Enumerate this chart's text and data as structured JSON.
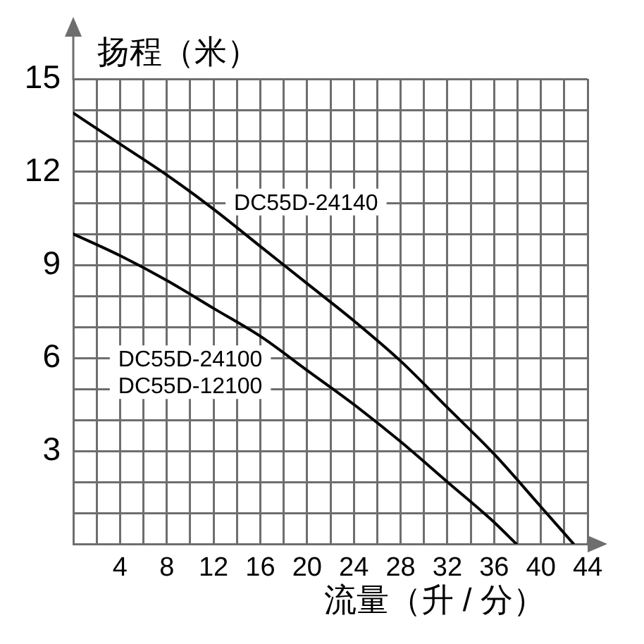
{
  "chart_data": {
    "type": "line",
    "xlabel": "流量（升 / 分）",
    "ylabel": "扬程（米）",
    "xlim": [
      0,
      44
    ],
    "ylim": [
      0,
      15
    ],
    "xticks": [
      {
        "value": 2,
        "label": null
      },
      4,
      {
        "value": 6,
        "label": null
      },
      8,
      {
        "value": 10,
        "label": null
      },
      12,
      {
        "value": 14,
        "label": null
      },
      16,
      {
        "value": 18,
        "label": null
      },
      20,
      {
        "value": 22,
        "label": null
      },
      24,
      {
        "value": 26,
        "label": null
      },
      28,
      {
        "value": 30,
        "label": null
      },
      32,
      {
        "value": 34,
        "label": null
      },
      36,
      {
        "value": 38,
        "label": null
      },
      40,
      {
        "value": 42,
        "label": null
      },
      44
    ],
    "yticks": [
      {
        "value": 1,
        "label": null
      },
      {
        "value": 2,
        "label": null
      },
      3,
      {
        "value": 4,
        "label": null
      },
      {
        "value": 5,
        "label": null
      },
      6,
      {
        "value": 7,
        "label": null
      },
      {
        "value": 8,
        "label": null
      },
      9,
      {
        "value": 10,
        "label": null
      },
      {
        "value": 11,
        "label": null
      },
      12,
      {
        "value": 13,
        "label": null
      },
      {
        "value": 14,
        "label": null
      },
      15
    ],
    "grid": true,
    "marker": "none",
    "series": [
      {
        "name": "DC55D-24140",
        "color": "#000000",
        "x": [
          0,
          4,
          8,
          12,
          16,
          20,
          24,
          28,
          32,
          36,
          40,
          42.8
        ],
        "values": [
          13.9,
          12.9,
          11.9,
          10.8,
          9.6,
          8.4,
          7.2,
          5.9,
          4.4,
          2.9,
          1.2,
          0
        ]
      },
      {
        "name": "DC55D-24100\nDC55D-12100",
        "color": "#000000",
        "x": [
          0,
          4,
          8,
          12,
          16,
          20,
          24,
          28,
          32,
          36,
          37.9
        ],
        "values": [
          10.0,
          9.3,
          8.5,
          7.6,
          6.7,
          5.6,
          4.5,
          3.3,
          2.0,
          0.7,
          0
        ]
      }
    ]
  }
}
